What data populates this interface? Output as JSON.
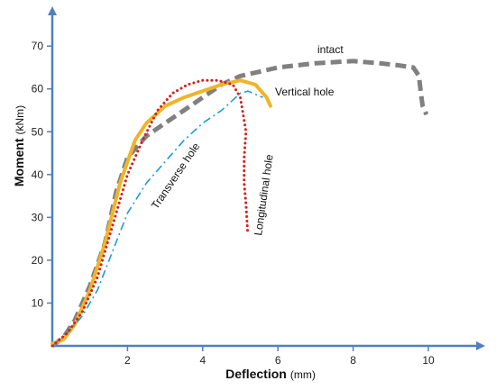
{
  "chart_data": {
    "type": "line",
    "xlabel": "Deflection",
    "xlabel_unit": "(mm)",
    "ylabel": "Moment",
    "ylabel_unit": "(kNm)",
    "xlim": [
      0,
      11.2
    ],
    "ylim": [
      0,
      78
    ],
    "x_ticks": [
      2,
      4,
      6,
      8,
      10
    ],
    "y_ticks": [
      10,
      20,
      30,
      40,
      50,
      60,
      70
    ],
    "grid": false,
    "series": [
      {
        "name": "intact",
        "color": "#808080",
        "style": "dashed",
        "points": [
          [
            0,
            0
          ],
          [
            0.3,
            2
          ],
          [
            0.6,
            6
          ],
          [
            1.0,
            14
          ],
          [
            1.4,
            24
          ],
          [
            1.7,
            36
          ],
          [
            2.0,
            44
          ],
          [
            2.5,
            49
          ],
          [
            3.0,
            52
          ],
          [
            3.5,
            55
          ],
          [
            4.0,
            58
          ],
          [
            4.5,
            61
          ],
          [
            5.0,
            63
          ],
          [
            5.5,
            64
          ],
          [
            6.0,
            65
          ],
          [
            7.0,
            66
          ],
          [
            8.0,
            66.5
          ],
          [
            8.7,
            66
          ],
          [
            9.2,
            65.5
          ],
          [
            9.6,
            65
          ],
          [
            9.75,
            63
          ],
          [
            9.8,
            59
          ],
          [
            9.85,
            56
          ],
          [
            9.95,
            54
          ]
        ]
      },
      {
        "name": "Vertical hole",
        "color": "#f0b429",
        "style": "solid",
        "points": [
          [
            0,
            0.5
          ],
          [
            0.3,
            1.5
          ],
          [
            0.6,
            5
          ],
          [
            1.0,
            13
          ],
          [
            1.4,
            24
          ],
          [
            1.8,
            38
          ],
          [
            2.2,
            48
          ],
          [
            2.5,
            52
          ],
          [
            3.0,
            56
          ],
          [
            3.5,
            58
          ],
          [
            4.0,
            59.5
          ],
          [
            4.5,
            61
          ],
          [
            5.0,
            62
          ],
          [
            5.4,
            61
          ],
          [
            5.7,
            58
          ],
          [
            5.8,
            56
          ]
        ]
      },
      {
        "name": "Transverse hole",
        "color": "#1e9cd7",
        "style": "dashdot",
        "points": [
          [
            0,
            0
          ],
          [
            0.4,
            3
          ],
          [
            0.8,
            7
          ],
          [
            1.2,
            13
          ],
          [
            1.6,
            22
          ],
          [
            2.0,
            31
          ],
          [
            2.5,
            38
          ],
          [
            3.0,
            43
          ],
          [
            3.5,
            48
          ],
          [
            4.0,
            52
          ],
          [
            4.5,
            55
          ],
          [
            5.0,
            59
          ],
          [
            5.2,
            59.5
          ],
          [
            5.6,
            58
          ]
        ]
      },
      {
        "name": "Longitudinal hole",
        "color": "#d42020",
        "style": "dotted",
        "points": [
          [
            0,
            0
          ],
          [
            0.4,
            3
          ],
          [
            0.8,
            8
          ],
          [
            1.2,
            16
          ],
          [
            1.6,
            28
          ],
          [
            2.0,
            40
          ],
          [
            2.4,
            48
          ],
          [
            2.8,
            55
          ],
          [
            3.2,
            59
          ],
          [
            3.6,
            61
          ],
          [
            4.0,
            62
          ],
          [
            4.4,
            62
          ],
          [
            4.8,
            61
          ],
          [
            5.0,
            58
          ],
          [
            5.15,
            50
          ],
          [
            5.1,
            44
          ],
          [
            5.1,
            38
          ],
          [
            5.15,
            33
          ],
          [
            5.2,
            26
          ]
        ]
      }
    ],
    "annotations": [
      {
        "text": "intact",
        "series": "intact"
      },
      {
        "text": "Vertical hole",
        "series": "Vertical hole"
      },
      {
        "text": "Transverse hole",
        "series": "Transverse hole"
      },
      {
        "text": "Longitudinal hole",
        "series": "Longitudinal hole"
      }
    ]
  }
}
